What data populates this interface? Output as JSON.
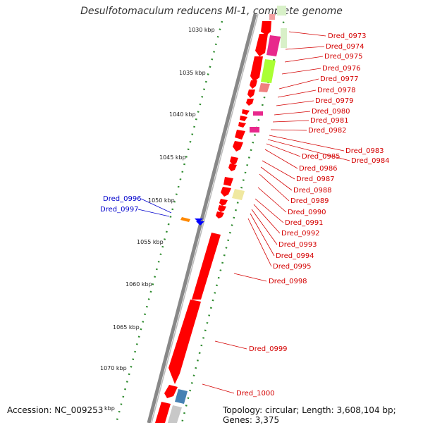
{
  "title": "Desulfotomaculum reducens MI-1, complete genome",
  "footer": {
    "accession": "Accession: NC_009253",
    "summary": "Topology: circular; Length: 3,608,104 bp; Genes: 3,375"
  },
  "colors": {
    "backbone": "#888888",
    "cds": "#ff0000",
    "label_red": "#d40000",
    "label_blue": "#0000cc",
    "tick": "#2e8b2e"
  },
  "ticks": [
    "1030 kbp",
    "1035 kbp",
    "1040 kbp",
    "1045 kbp",
    "1050 kbp",
    "1055 kbp",
    "1060 kbp",
    "1065 kbp",
    "1070 kbp",
    "kbp"
  ],
  "right_labels": [
    "Dred_0973",
    "Dred_0974",
    "Dred_0975",
    "Dred_0976",
    "Dred_0977",
    "Dred_0978",
    "Dred_0979",
    "Dred_0980",
    "Dred_0981",
    "Dred_0982",
    "Dred_0983",
    "Dred_0984",
    "Dred_0985",
    "Dred_0986",
    "Dred_0987",
    "Dred_0988",
    "Dred_0989",
    "Dred_0990",
    "Dred_0991",
    "Dred_0992",
    "Dred_0993",
    "Dred_0994",
    "Dred_0995",
    "Dred_0998",
    "Dred_0999",
    "Dred_1000"
  ],
  "left_labels": [
    "Dred_0996",
    "Dred_0997"
  ]
}
